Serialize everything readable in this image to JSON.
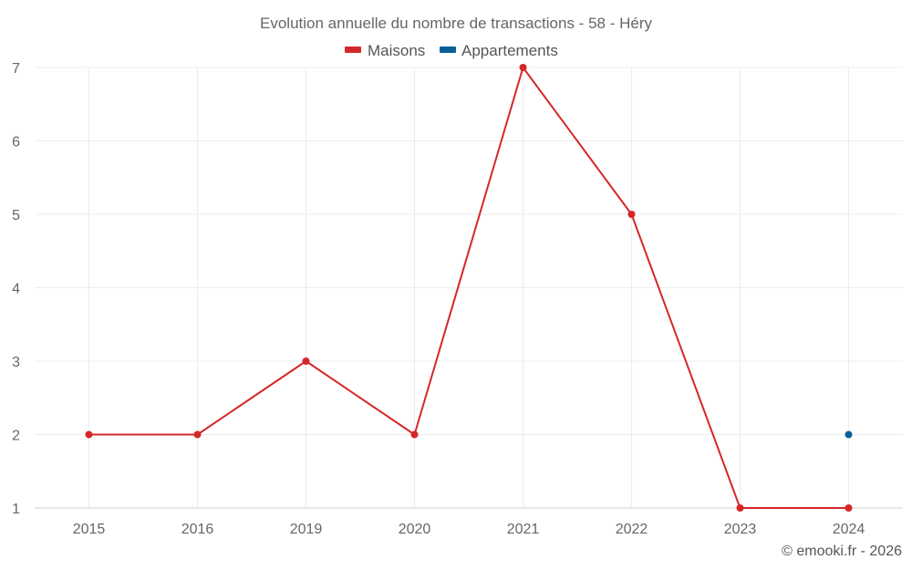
{
  "chart_data": {
    "type": "line",
    "title": "Evolution annuelle du nombre de transactions - 58 - Héry",
    "categories": [
      "2015",
      "2016",
      "2019",
      "2020",
      "2021",
      "2022",
      "2023",
      "2024"
    ],
    "ylim": [
      1,
      7
    ],
    "yticks": [
      1,
      2,
      3,
      4,
      5,
      6,
      7
    ],
    "grid": true,
    "legend_position": "top-center",
    "series": [
      {
        "name": "Maisons",
        "color": "#d62728",
        "values": [
          2,
          2,
          3,
          2,
          7,
          5,
          1,
          1
        ]
      },
      {
        "name": "Appartements",
        "color": "#0b5f98",
        "values": [
          null,
          null,
          null,
          null,
          null,
          null,
          null,
          2
        ]
      }
    ]
  },
  "credit": "© emooki.fr - 2026"
}
